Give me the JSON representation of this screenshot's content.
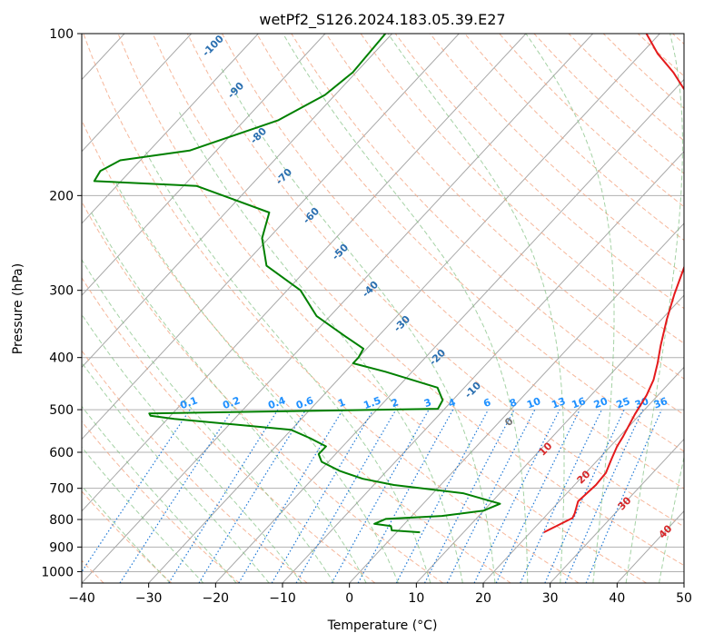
{
  "chart_data": {
    "type": "line",
    "subtype": "skew-t log-p",
    "title": "wetPf2_S126.2024.183.05.39.E27",
    "xlabel": "Temperature (°C)",
    "ylabel": "Pressure (hPa)",
    "xlim": [
      -40,
      50
    ],
    "ylim": [
      1050,
      100
    ],
    "y_scale": "log",
    "grid": true,
    "x_ticks": [
      "−40",
      "−30",
      "−20",
      "−10",
      "0",
      "10",
      "20",
      "30",
      "40",
      "50"
    ],
    "x_tick_values": [
      -40,
      -30,
      -20,
      -10,
      0,
      10,
      20,
      30,
      40,
      50
    ],
    "y_ticks": [
      "100",
      "200",
      "300",
      "400",
      "500",
      "600",
      "700",
      "800",
      "900",
      "1000"
    ],
    "y_tick_values": [
      100,
      200,
      300,
      400,
      500,
      600,
      700,
      800,
      900,
      1000
    ],
    "series": [
      {
        "color": "#e41a1c",
        "points": [
          [
            22.0,
            845
          ],
          [
            24.3,
            795
          ],
          [
            24.0,
            780
          ],
          [
            22.8,
            740
          ],
          [
            23.2,
            690
          ],
          [
            23.0,
            655
          ],
          [
            22.0,
            620
          ],
          [
            21.0,
            585
          ],
          [
            20.5,
            560
          ],
          [
            19.2,
            510
          ],
          [
            18.3,
            470
          ],
          [
            17.2,
            440
          ],
          [
            15.5,
            410
          ],
          [
            13.5,
            380
          ],
          [
            10.8,
            340
          ],
          [
            8.4,
            305
          ],
          [
            6.0,
            270
          ],
          [
            3.4,
            240
          ],
          [
            0.8,
            215
          ],
          [
            -2.0,
            200
          ],
          [
            -5.5,
            185
          ],
          [
            -8.5,
            170
          ],
          [
            -12.2,
            150
          ],
          [
            -17.3,
            130
          ],
          [
            -22.6,
            118
          ],
          [
            -27.5,
            109
          ],
          [
            -32.0,
            100
          ]
        ]
      },
      {
        "color": "#008000",
        "points": [
          [
            3.5,
            845
          ],
          [
            -1.0,
            838
          ],
          [
            -1.7,
            823
          ],
          [
            -4.5,
            815
          ],
          [
            -3.5,
            798
          ],
          [
            4.5,
            788
          ],
          [
            10.0,
            770
          ],
          [
            11.5,
            748
          ],
          [
            4.5,
            715
          ],
          [
            -7.0,
            690
          ],
          [
            -12.5,
            672
          ],
          [
            -17.0,
            650
          ],
          [
            -21.0,
            625
          ],
          [
            -22.5,
            605
          ],
          [
            -22.5,
            585
          ],
          [
            -26.0,
            565
          ],
          [
            -30.0,
            545
          ],
          [
            -49.0,
            520
          ],
          [
            -53.0,
            513
          ],
          [
            -53.5,
            508
          ],
          [
            -11.0,
            498
          ],
          [
            -11.5,
            480
          ],
          [
            -14.0,
            455
          ],
          [
            -24.0,
            425
          ],
          [
            -30.0,
            410
          ],
          [
            -30.0,
            400
          ],
          [
            -30.5,
            385
          ],
          [
            -35.0,
            365
          ],
          [
            -42.0,
            335
          ],
          [
            -48.0,
            300
          ],
          [
            -56.5,
            270
          ],
          [
            -61.0,
            240
          ],
          [
            -63.5,
            215
          ],
          [
            -78.0,
            192
          ],
          [
            -94.0,
            188
          ],
          [
            -94.5,
            180
          ],
          [
            -93.0,
            172
          ],
          [
            -84.0,
            165
          ],
          [
            -75.0,
            145
          ],
          [
            -71.5,
            130
          ],
          [
            -70.5,
            118
          ],
          [
            -71.0,
            100
          ]
        ]
      }
    ],
    "mixing_ratio_labels": [
      "0.1",
      "0.2",
      "0.4",
      "0.6",
      "1",
      "1.5",
      "2",
      "3",
      "4",
      "6",
      "8",
      "10",
      "13",
      "16",
      "20",
      "25",
      "30",
      "36"
    ],
    "dry_adiabat_labels": [
      "-100",
      "-90",
      "-80",
      "-70",
      "-60",
      "-50",
      "-40",
      "-30",
      "-20",
      "-10"
    ],
    "moist_adiabat_labels": [
      "10",
      "20",
      "30",
      "40"
    ],
    "isotherm_label": "0"
  }
}
